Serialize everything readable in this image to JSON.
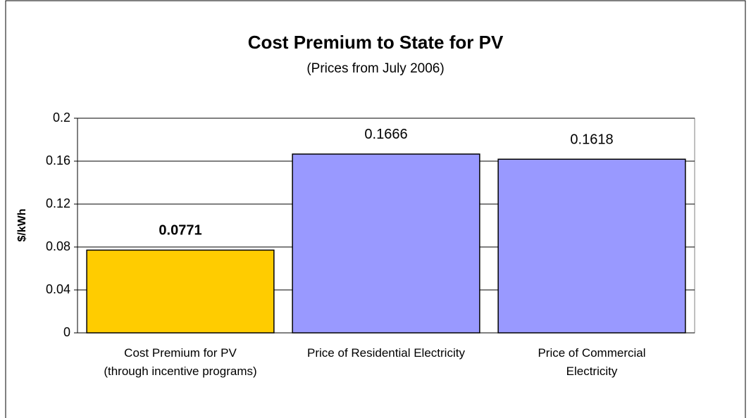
{
  "chart_data": {
    "type": "bar",
    "title": "Cost Premium to State for PV",
    "subtitle": "(Prices from July 2006)",
    "y_label": "$/kWh",
    "categories": [
      "Cost Premium for PV\n(through incentive programs)",
      "Price of Residential Electricity",
      "Price of Commercial\nElectricity"
    ],
    "values": [
      0.0771,
      0.1666,
      0.1618
    ],
    "colors": [
      "#ffcc00",
      "#9999ff",
      "#9999ff"
    ],
    "value_label_bold": [
      true,
      false,
      false
    ],
    "ylim": [
      0,
      0.2
    ],
    "yticks": [
      0,
      0.04,
      0.08,
      0.12,
      0.16,
      0.2
    ],
    "grid": true
  }
}
